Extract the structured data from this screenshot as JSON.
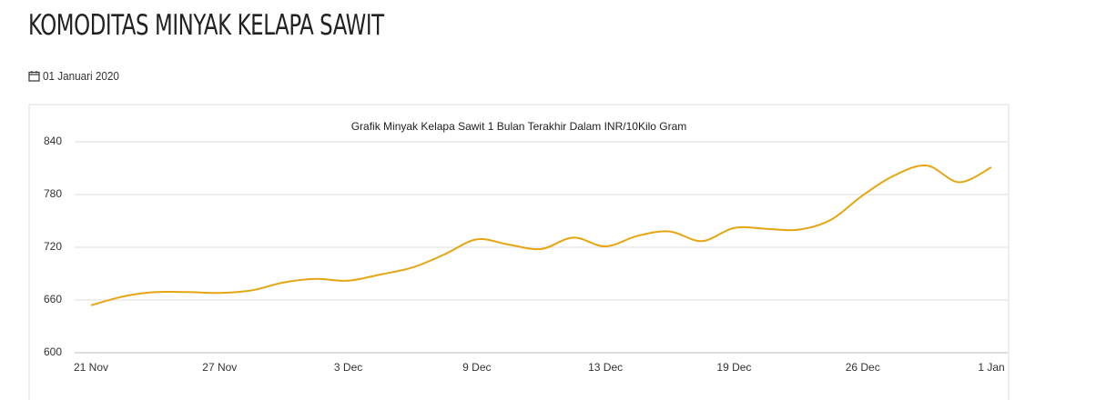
{
  "header": {
    "title": "KOMODITAS MINYAK KELAPA SAWIT",
    "date": "01 Januari 2020"
  },
  "chart_data": {
    "type": "line",
    "title": "Grafik Minyak Kelapa Sawit 1 Bulan Terakhir Dalam INR/10Kilo Gram",
    "categories": [
      "21 Nov",
      null,
      null,
      null,
      "27 Nov",
      null,
      null,
      null,
      "3 Dec",
      null,
      null,
      null,
      "9 Dec",
      null,
      null,
      null,
      "13 Dec",
      null,
      null,
      null,
      "19 Dec",
      null,
      null,
      null,
      "26 Dec",
      null,
      null,
      null,
      "1 Jan"
    ],
    "series": [
      {
        "name": "Minyak Kelapa Sawit",
        "color": "#e6a511",
        "values": [
          654,
          664,
          669,
          669,
          668,
          671,
          680,
          684,
          682,
          689,
          697,
          712,
          729,
          723,
          718,
          731,
          721,
          733,
          738,
          727,
          742,
          741,
          740,
          751,
          779,
          802,
          813,
          794,
          811
        ]
      }
    ],
    "ylim": [
      600,
      840
    ],
    "yticks": [
      600,
      660,
      720,
      780,
      840
    ],
    "grid": true,
    "legend": false
  }
}
